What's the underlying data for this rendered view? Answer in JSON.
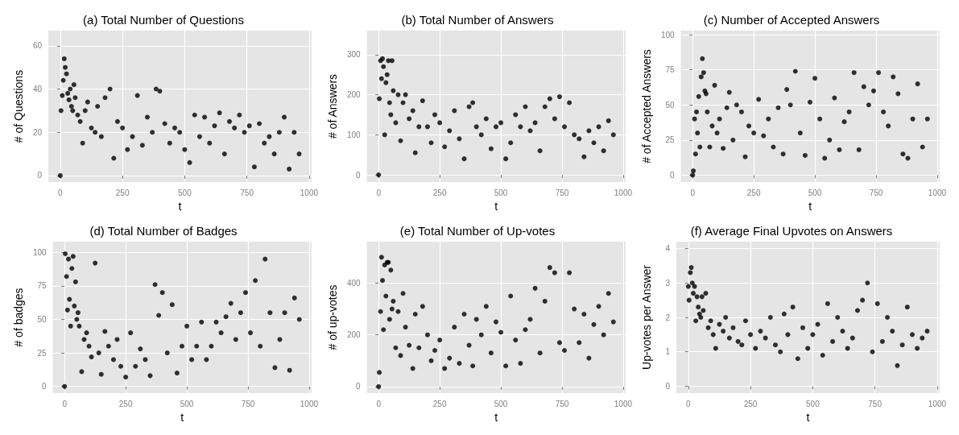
{
  "chart_data": [
    {
      "type": "scatter",
      "title": "(a) Total Number of Questions",
      "xlabel": "t",
      "ylabel": "# of Questions",
      "color": "#000000",
      "marker": "circle",
      "grid": true,
      "xlim": [
        -48,
        1010
      ],
      "xticks": [
        0,
        250,
        500,
        750,
        1000
      ],
      "ylim": [
        -3,
        67
      ],
      "yticks": [
        0,
        20,
        40,
        60
      ],
      "x": [
        0,
        3,
        8,
        12,
        16,
        20,
        25,
        30,
        35,
        40,
        45,
        50,
        55,
        60,
        70,
        80,
        90,
        100,
        110,
        125,
        140,
        150,
        165,
        180,
        200,
        215,
        230,
        250,
        270,
        290,
        310,
        330,
        350,
        370,
        385,
        400,
        420,
        440,
        460,
        480,
        500,
        520,
        540,
        560,
        580,
        600,
        620,
        640,
        660,
        680,
        700,
        720,
        740,
        760,
        780,
        800,
        820,
        840,
        860,
        880,
        900,
        920,
        940,
        960
      ],
      "values": [
        0,
        30,
        37,
        44,
        54,
        50,
        47,
        38,
        35,
        40,
        32,
        30,
        42,
        36,
        28,
        25,
        15,
        30,
        34,
        22,
        20,
        32,
        18,
        36,
        40,
        8,
        25,
        22,
        12,
        18,
        37,
        14,
        27,
        20,
        40,
        39,
        24,
        15,
        22,
        20,
        12,
        6,
        28,
        18,
        27,
        15,
        23,
        29,
        10,
        25,
        22,
        28,
        20,
        23,
        4,
        24,
        15,
        18,
        10,
        20,
        27,
        3,
        20,
        10
      ]
    },
    {
      "type": "scatter",
      "title": "(b) Total Number of Answers",
      "xlabel": "t",
      "ylabel": "# of Answers",
      "color": "#000000",
      "marker": "circle",
      "grid": true,
      "xlim": [
        -48,
        1010
      ],
      "xticks": [
        0,
        250,
        500,
        750,
        1000
      ],
      "ylim": [
        -18,
        360
      ],
      "yticks": [
        0,
        100,
        200,
        300
      ],
      "x": [
        0,
        3,
        8,
        12,
        16,
        20,
        25,
        30,
        35,
        40,
        45,
        50,
        55,
        60,
        70,
        80,
        90,
        100,
        110,
        125,
        140,
        150,
        165,
        180,
        200,
        215,
        230,
        250,
        270,
        290,
        310,
        330,
        350,
        370,
        385,
        400,
        420,
        440,
        460,
        480,
        500,
        520,
        540,
        560,
        580,
        600,
        620,
        640,
        660,
        680,
        700,
        720,
        740,
        760,
        780,
        800,
        820,
        840,
        860,
        880,
        900,
        920,
        940,
        960
      ],
      "values": [
        0,
        190,
        285,
        240,
        290,
        270,
        100,
        230,
        250,
        285,
        180,
        150,
        285,
        210,
        130,
        200,
        85,
        180,
        200,
        140,
        160,
        55,
        120,
        185,
        120,
        80,
        150,
        130,
        70,
        110,
        160,
        90,
        40,
        170,
        180,
        120,
        100,
        140,
        65,
        120,
        130,
        40,
        80,
        150,
        120,
        170,
        110,
        130,
        60,
        170,
        190,
        140,
        195,
        120,
        180,
        100,
        90,
        45,
        110,
        80,
        120,
        60,
        135,
        100
      ]
    },
    {
      "type": "scatter",
      "title": "(c) Number of Accepted Answers",
      "xlabel": "t",
      "ylabel": "# of Accepted Answers",
      "color": "#000000",
      "marker": "circle",
      "grid": true,
      "xlim": [
        -48,
        1010
      ],
      "xticks": [
        0,
        250,
        500,
        750,
        1000
      ],
      "ylim": [
        -5,
        103
      ],
      "yticks": [
        0,
        25,
        50,
        75,
        100
      ],
      "x": [
        0,
        3,
        8,
        12,
        16,
        20,
        25,
        30,
        35,
        40,
        45,
        50,
        55,
        60,
        70,
        80,
        90,
        100,
        110,
        125,
        140,
        150,
        165,
        180,
        200,
        215,
        230,
        250,
        270,
        290,
        310,
        330,
        350,
        370,
        385,
        400,
        420,
        440,
        460,
        480,
        500,
        520,
        540,
        560,
        580,
        600,
        620,
        640,
        660,
        680,
        700,
        720,
        740,
        760,
        780,
        800,
        820,
        840,
        860,
        880,
        900,
        920,
        940,
        960
      ],
      "values": [
        0,
        3,
        40,
        15,
        45,
        30,
        56,
        20,
        70,
        83,
        73,
        60,
        58,
        45,
        20,
        35,
        64,
        30,
        40,
        19,
        48,
        59,
        25,
        50,
        45,
        13,
        35,
        30,
        54,
        28,
        40,
        20,
        48,
        15,
        61,
        50,
        74,
        30,
        14,
        52,
        69,
        40,
        12,
        25,
        55,
        18,
        38,
        45,
        73,
        18,
        63,
        50,
        60,
        73,
        45,
        35,
        70,
        58,
        15,
        12,
        40,
        65,
        20,
        40
      ]
    },
    {
      "type": "scatter",
      "title": "(d) Total Number of Badges",
      "xlabel": "t",
      "ylabel": "# of badges",
      "color": "#000000",
      "marker": "circle",
      "grid": true,
      "xlim": [
        -48,
        1010
      ],
      "xticks": [
        0,
        250,
        500,
        750,
        1000
      ],
      "ylim": [
        -5,
        108
      ],
      "yticks": [
        0,
        25,
        50,
        75,
        100
      ],
      "x": [
        0,
        3,
        8,
        12,
        16,
        20,
        25,
        30,
        35,
        40,
        45,
        50,
        55,
        60,
        70,
        80,
        90,
        100,
        110,
        125,
        140,
        150,
        165,
        180,
        200,
        215,
        230,
        250,
        270,
        290,
        310,
        330,
        350,
        370,
        385,
        400,
        420,
        440,
        460,
        480,
        500,
        520,
        540,
        560,
        580,
        600,
        620,
        640,
        660,
        680,
        700,
        720,
        740,
        760,
        780,
        800,
        820,
        840,
        860,
        880,
        900,
        920,
        940,
        960
      ],
      "values": [
        0,
        99,
        82,
        57,
        95,
        65,
        45,
        88,
        97,
        60,
        78,
        50,
        55,
        45,
        11,
        35,
        40,
        30,
        22,
        92,
        25,
        9,
        41,
        30,
        20,
        35,
        15,
        7,
        40,
        15,
        28,
        20,
        8,
        76,
        53,
        70,
        25,
        61,
        10,
        30,
        45,
        20,
        30,
        48,
        20,
        30,
        48,
        40,
        52,
        62,
        35,
        55,
        70,
        40,
        79,
        30,
        95,
        55,
        14,
        35,
        55,
        12,
        66,
        50
      ]
    },
    {
      "type": "scatter",
      "title": "(e) Total Number of Up-votes",
      "xlabel": "t",
      "ylabel": "# of up-votes",
      "color": "#000000",
      "marker": "circle",
      "grid": true,
      "xlim": [
        -48,
        1010
      ],
      "xticks": [
        0,
        250,
        500,
        750,
        1000
      ],
      "ylim": [
        -25,
        560
      ],
      "yticks": [
        0,
        200,
        400
      ],
      "x": [
        0,
        3,
        8,
        12,
        16,
        20,
        25,
        30,
        35,
        40,
        45,
        50,
        55,
        60,
        70,
        80,
        90,
        100,
        110,
        125,
        140,
        150,
        165,
        180,
        200,
        215,
        230,
        250,
        270,
        290,
        310,
        330,
        350,
        370,
        385,
        400,
        420,
        440,
        460,
        480,
        500,
        520,
        540,
        560,
        580,
        600,
        620,
        640,
        660,
        680,
        700,
        720,
        740,
        760,
        780,
        800,
        820,
        840,
        860,
        880,
        900,
        920,
        940,
        960
      ],
      "values": [
        0,
        55,
        290,
        500,
        410,
        220,
        470,
        350,
        480,
        480,
        260,
        450,
        300,
        330,
        150,
        290,
        120,
        360,
        230,
        160,
        70,
        280,
        150,
        310,
        200,
        100,
        140,
        180,
        70,
        110,
        230,
        90,
        280,
        160,
        80,
        260,
        200,
        310,
        130,
        250,
        210,
        80,
        350,
        180,
        90,
        220,
        260,
        380,
        130,
        330,
        460,
        440,
        170,
        140,
        440,
        300,
        170,
        280,
        110,
        240,
        310,
        200,
        360,
        250
      ]
    },
    {
      "type": "scatter",
      "title": "(f) Average Final Upvotes on Answers",
      "xlabel": "t",
      "ylabel": "Up-votes per Answer",
      "color": "#000000",
      "marker": "circle",
      "grid": true,
      "xlim": [
        -48,
        1010
      ],
      "xticks": [
        0,
        250,
        500,
        750,
        1000
      ],
      "ylim": [
        -0.2,
        4.2
      ],
      "yticks": [
        0,
        1,
        2,
        3,
        4
      ],
      "x": [
        0,
        3,
        8,
        12,
        16,
        20,
        25,
        30,
        35,
        40,
        45,
        50,
        55,
        60,
        70,
        80,
        90,
        100,
        110,
        125,
        140,
        150,
        165,
        180,
        200,
        215,
        230,
        250,
        270,
        290,
        310,
        330,
        350,
        370,
        385,
        400,
        420,
        440,
        460,
        480,
        500,
        520,
        540,
        560,
        580,
        600,
        620,
        640,
        660,
        680,
        700,
        720,
        740,
        760,
        780,
        800,
        820,
        840,
        860,
        880,
        900,
        920,
        940,
        960
      ],
      "values": [
        2.9,
        2.5,
        3.3,
        3.45,
        3.0,
        2.7,
        2.9,
        1.9,
        2.6,
        2.3,
        2.1,
        2.0,
        2.6,
        2.2,
        2.7,
        1.7,
        1.9,
        1.5,
        1.1,
        1.8,
        1.6,
        2.0,
        1.4,
        1.7,
        1.3,
        1.2,
        1.9,
        1.5,
        1.1,
        1.6,
        1.4,
        2.0,
        1.2,
        1.0,
        2.1,
        1.5,
        2.3,
        0.8,
        1.7,
        1.1,
        1.5,
        1.8,
        0.9,
        2.4,
        1.3,
        2.0,
        1.6,
        1.1,
        1.4,
        2.2,
        2.5,
        3.0,
        1.0,
        2.4,
        1.3,
        2.0,
        1.6,
        0.6,
        1.2,
        2.3,
        1.5,
        1.1,
        1.4,
        1.6
      ]
    }
  ]
}
